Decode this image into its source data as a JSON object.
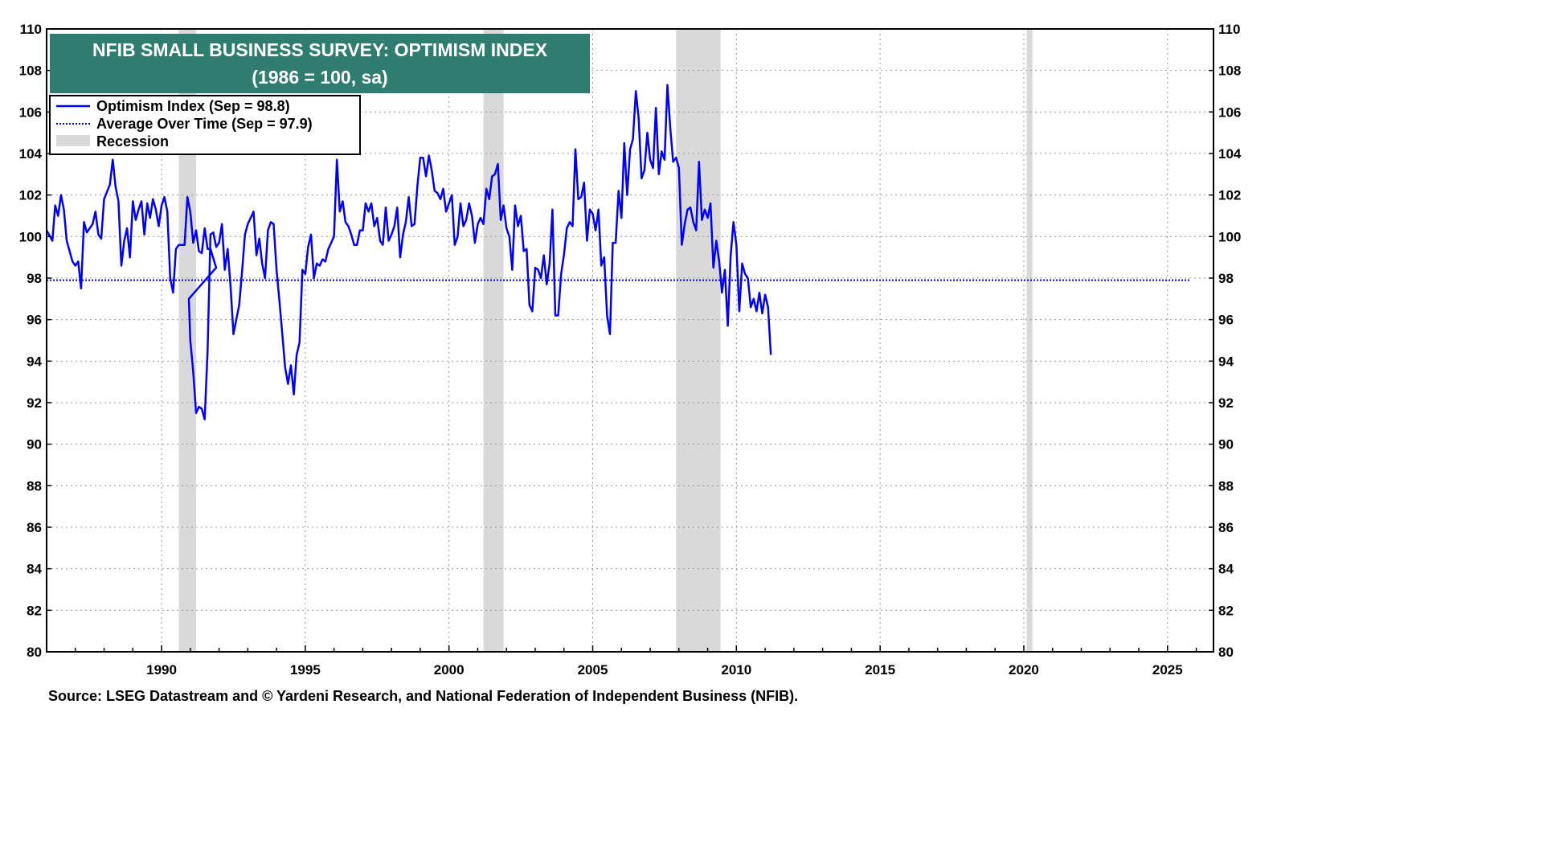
{
  "chart_data": {
    "type": "line",
    "title": "NFIB SMALL BUSINESS SURVEY: OPTIMISM INDEX",
    "subtitle": "(1986 = 100, sa)",
    "source": "Source: LSEG Datastream and © Yardeni Research, and National Federation of Independent Business (NFIB).",
    "xlabel": "",
    "ylabel": "",
    "xlim": [
      1986.0,
      2026.6
    ],
    "ylim": [
      80,
      110
    ],
    "x_ticks": [
      1990,
      1995,
      2000,
      2005,
      2010,
      2015,
      2020,
      2025
    ],
    "y_ticks": [
      80,
      82,
      84,
      86,
      88,
      90,
      92,
      94,
      96,
      98,
      100,
      102,
      104,
      106,
      108,
      110
    ],
    "grid": true,
    "legend_position": "top-left",
    "legend": [
      {
        "label": "Optimism Index (Sep = 98.8)",
        "style": "solid",
        "color": "#0000ff"
      },
      {
        "label": "Average Over Time (Sep = 97.9)",
        "style": "dotted",
        "color": "#0000ff"
      },
      {
        "label": "Recession",
        "style": "box",
        "color": "#d9d9d9"
      }
    ],
    "average": 97.9,
    "recessions": [
      {
        "start": 1990.6,
        "end": 1991.2
      },
      {
        "start": 2001.2,
        "end": 2001.9
      },
      {
        "start": 2007.9,
        "end": 2009.45
      },
      {
        "start": 2020.1,
        "end": 2020.3
      }
    ],
    "series": [
      {
        "name": "Optimism Index",
        "color": "#0000ff",
        "points": [
          [
            1986.0,
            100.3
          ],
          [
            1986.2,
            99.8
          ],
          [
            1986.3,
            101.5
          ],
          [
            1986.4,
            101.0
          ],
          [
            1986.5,
            102.0
          ],
          [
            1986.6,
            101.3
          ],
          [
            1986.7,
            99.8
          ],
          [
            1986.9,
            98.8
          ],
          [
            1987.0,
            98.6
          ],
          [
            1987.1,
            98.8
          ],
          [
            1987.2,
            97.5
          ],
          [
            1987.3,
            100.7
          ],
          [
            1987.4,
            100.2
          ],
          [
            1987.6,
            100.6
          ],
          [
            1987.7,
            101.2
          ],
          [
            1987.8,
            100.1
          ],
          [
            1987.9,
            99.9
          ],
          [
            1988.0,
            101.8
          ],
          [
            1988.2,
            102.5
          ],
          [
            1988.3,
            103.7
          ],
          [
            1988.4,
            102.4
          ],
          [
            1988.5,
            101.7
          ],
          [
            1988.6,
            98.6
          ],
          [
            1988.7,
            99.8
          ],
          [
            1988.8,
            100.4
          ],
          [
            1988.9,
            99.0
          ],
          [
            1989.0,
            101.7
          ],
          [
            1989.1,
            100.8
          ],
          [
            1989.2,
            101.3
          ],
          [
            1989.3,
            101.7
          ],
          [
            1989.4,
            100.1
          ],
          [
            1989.5,
            101.6
          ],
          [
            1989.6,
            100.9
          ],
          [
            1989.7,
            101.8
          ],
          [
            1989.8,
            101.3
          ],
          [
            1989.9,
            100.5
          ],
          [
            1990.0,
            101.5
          ],
          [
            1990.1,
            101.9
          ],
          [
            1990.2,
            101.2
          ],
          [
            1990.3,
            98.0
          ],
          [
            1990.4,
            97.3
          ],
          [
            1990.5,
            99.4
          ],
          [
            1990.6,
            99.6
          ],
          [
            1990.8,
            99.6
          ],
          [
            1990.9,
            101.9
          ],
          [
            1991.0,
            101.2
          ],
          [
            1991.1,
            99.7
          ],
          [
            1991.2,
            100.3
          ],
          [
            1991.3,
            99.3
          ],
          [
            1991.4,
            99.2
          ],
          [
            1991.5,
            100.4
          ],
          [
            1991.6,
            99.4
          ],
          [
            1991.7,
            99.4
          ],
          [
            1991.9,
            98.5
          ],
          [
            1990.95,
            97.0
          ],
          [
            1991.0,
            95.0
          ],
          [
            1991.1,
            93.5
          ],
          [
            1991.2,
            91.5
          ],
          [
            1991.3,
            91.8
          ],
          [
            1991.4,
            91.7
          ],
          [
            1991.5,
            91.2
          ],
          [
            1991.6,
            94.5
          ],
          [
            1991.7,
            100.1
          ],
          [
            1991.8,
            100.2
          ],
          [
            1991.9,
            99.5
          ],
          [
            1992.0,
            99.7
          ],
          [
            1992.1,
            100.6
          ],
          [
            1992.2,
            98.4
          ],
          [
            1992.3,
            99.4
          ],
          [
            1992.4,
            97.6
          ],
          [
            1992.5,
            95.3
          ],
          [
            1992.6,
            96.0
          ],
          [
            1992.7,
            96.7
          ],
          [
            1992.8,
            98.3
          ],
          [
            1992.9,
            100.1
          ],
          [
            1993.0,
            100.6
          ],
          [
            1993.1,
            100.9
          ],
          [
            1993.2,
            101.2
          ],
          [
            1993.3,
            99.1
          ],
          [
            1993.4,
            99.9
          ],
          [
            1993.5,
            98.7
          ],
          [
            1993.6,
            98.0
          ],
          [
            1993.7,
            100.3
          ],
          [
            1993.8,
            100.7
          ],
          [
            1993.9,
            100.6
          ],
          [
            1994.0,
            98.4
          ],
          [
            1994.1,
            96.9
          ],
          [
            1994.2,
            95.3
          ],
          [
            1994.3,
            93.7
          ],
          [
            1994.4,
            92.9
          ],
          [
            1994.5,
            93.8
          ],
          [
            1994.6,
            92.4
          ],
          [
            1994.7,
            94.3
          ],
          [
            1994.8,
            94.9
          ],
          [
            1994.9,
            98.4
          ],
          [
            1995.0,
            98.2
          ],
          [
            1995.1,
            99.5
          ],
          [
            1995.2,
            100.1
          ],
          [
            1995.3,
            98.0
          ],
          [
            1995.4,
            98.7
          ],
          [
            1995.5,
            98.6
          ],
          [
            1995.6,
            98.9
          ],
          [
            1995.7,
            98.8
          ],
          [
            1995.8,
            99.4
          ],
          [
            1995.9,
            99.7
          ],
          [
            1996.0,
            100.0
          ],
          [
            1996.1,
            103.7
          ],
          [
            1996.2,
            101.2
          ],
          [
            1996.3,
            101.7
          ],
          [
            1996.4,
            100.7
          ],
          [
            1996.5,
            100.5
          ],
          [
            1996.6,
            100.1
          ],
          [
            1996.7,
            99.6
          ],
          [
            1996.8,
            99.6
          ],
          [
            1996.9,
            100.3
          ],
          [
            1997.0,
            100.3
          ],
          [
            1997.1,
            101.6
          ],
          [
            1997.2,
            101.2
          ],
          [
            1997.3,
            101.6
          ],
          [
            1997.4,
            100.5
          ],
          [
            1997.5,
            100.9
          ],
          [
            1997.6,
            99.8
          ],
          [
            1997.7,
            99.6
          ],
          [
            1997.8,
            101.4
          ],
          [
            1997.9,
            99.8
          ],
          [
            1998.0,
            100.1
          ],
          [
            1998.1,
            100.5
          ],
          [
            1998.2,
            101.4
          ],
          [
            1998.3,
            99.0
          ],
          [
            1998.4,
            100.1
          ],
          [
            1998.5,
            100.7
          ],
          [
            1998.6,
            101.9
          ],
          [
            1998.7,
            100.5
          ],
          [
            1998.8,
            100.6
          ],
          [
            1998.9,
            102.4
          ],
          [
            1999.0,
            103.8
          ],
          [
            1999.1,
            103.8
          ],
          [
            1999.2,
            102.9
          ],
          [
            1999.3,
            103.9
          ],
          [
            1999.4,
            103.2
          ],
          [
            1999.5,
            102.2
          ],
          [
            1999.6,
            102.1
          ],
          [
            1999.7,
            101.8
          ],
          [
            1999.8,
            102.3
          ],
          [
            1999.9,
            101.2
          ],
          [
            2000.0,
            101.6
          ],
          [
            2000.1,
            102.0
          ],
          [
            2000.2,
            99.6
          ],
          [
            2000.3,
            100.0
          ],
          [
            2000.4,
            101.6
          ],
          [
            2000.5,
            100.5
          ],
          [
            2000.6,
            100.8
          ],
          [
            2000.7,
            101.6
          ],
          [
            2000.8,
            101.0
          ],
          [
            2000.9,
            99.7
          ],
          [
            2001.0,
            100.6
          ],
          [
            2001.1,
            100.9
          ],
          [
            2001.2,
            100.6
          ],
          [
            2001.3,
            102.3
          ],
          [
            2001.4,
            101.8
          ],
          [
            2001.5,
            102.9
          ],
          [
            2001.6,
            103.0
          ],
          [
            2001.7,
            103.5
          ],
          [
            2001.8,
            100.8
          ],
          [
            2001.9,
            101.5
          ],
          [
            2002.0,
            100.4
          ],
          [
            2002.1,
            100.0
          ],
          [
            2002.2,
            98.4
          ],
          [
            2002.3,
            101.5
          ],
          [
            2002.4,
            100.5
          ],
          [
            2002.5,
            101.0
          ],
          [
            2002.6,
            99.3
          ],
          [
            2002.7,
            99.4
          ],
          [
            2002.8,
            96.7
          ],
          [
            2002.9,
            96.4
          ],
          [
            2003.0,
            98.5
          ],
          [
            2003.1,
            98.4
          ],
          [
            2003.2,
            98.0
          ],
          [
            2003.3,
            99.1
          ],
          [
            2003.4,
            97.7
          ],
          [
            2003.5,
            98.7
          ],
          [
            2003.6,
            101.3
          ],
          [
            2003.7,
            96.2
          ],
          [
            2003.8,
            96.2
          ],
          [
            2003.9,
            98.2
          ],
          [
            2004.0,
            99.1
          ],
          [
            2004.1,
            100.4
          ],
          [
            2004.2,
            100.7
          ],
          [
            2004.3,
            100.5
          ],
          [
            2004.4,
            104.2
          ],
          [
            2004.5,
            101.8
          ],
          [
            2004.6,
            101.9
          ],
          [
            2004.7,
            102.6
          ],
          [
            2004.8,
            99.8
          ],
          [
            2004.9,
            101.3
          ],
          [
            2005.0,
            101.1
          ],
          [
            2005.1,
            100.3
          ],
          [
            2005.2,
            101.3
          ],
          [
            2005.3,
            98.6
          ],
          [
            2005.4,
            99.0
          ],
          [
            2005.5,
            96.2
          ],
          [
            2005.6,
            95.3
          ],
          [
            2005.7,
            99.7
          ],
          [
            2005.8,
            99.7
          ],
          [
            2005.9,
            102.2
          ],
          [
            2006.0,
            100.9
          ],
          [
            2006.1,
            104.5
          ],
          [
            2006.2,
            102.0
          ],
          [
            2006.3,
            104.2
          ],
          [
            2006.4,
            104.7
          ],
          [
            2006.5,
            107.0
          ],
          [
            2006.6,
            105.7
          ],
          [
            2006.7,
            102.8
          ],
          [
            2006.8,
            103.2
          ],
          [
            2006.9,
            105.0
          ],
          [
            2007.0,
            103.7
          ],
          [
            2007.1,
            103.3
          ],
          [
            2007.2,
            106.2
          ],
          [
            2007.3,
            103.0
          ],
          [
            2007.4,
            104.1
          ],
          [
            2007.5,
            103.7
          ],
          [
            2007.6,
            107.3
          ],
          [
            2007.7,
            105.2
          ],
          [
            2007.8,
            103.6
          ],
          [
            2007.9,
            103.8
          ],
          [
            2008.0,
            103.3
          ],
          [
            2008.1,
            99.6
          ],
          [
            2008.2,
            100.6
          ],
          [
            2008.3,
            101.3
          ],
          [
            2008.4,
            101.4
          ],
          [
            2008.5,
            100.7
          ],
          [
            2008.6,
            100.3
          ],
          [
            2008.7,
            103.6
          ],
          [
            2008.8,
            100.8
          ],
          [
            2008.9,
            101.3
          ],
          [
            2009.0,
            100.9
          ],
          [
            2009.1,
            101.6
          ],
          [
            2009.2,
            98.5
          ],
          [
            2009.3,
            99.8
          ],
          [
            2009.4,
            98.8
          ],
          [
            2009.5,
            97.3
          ],
          [
            2009.6,
            98.4
          ],
          [
            2009.7,
            95.7
          ],
          [
            2009.8,
            99.1
          ],
          [
            2009.9,
            100.7
          ],
          [
            2010.0,
            99.6
          ],
          [
            2010.1,
            96.4
          ],
          [
            2010.2,
            98.7
          ],
          [
            2010.3,
            98.2
          ],
          [
            2010.4,
            98.0
          ],
          [
            2010.5,
            96.6
          ],
          [
            2010.6,
            97.0
          ],
          [
            2010.7,
            96.4
          ],
          [
            2010.8,
            97.3
          ],
          [
            2010.9,
            96.3
          ],
          [
            2011.0,
            97.2
          ],
          [
            2011.1,
            96.6
          ],
          [
            2011.2,
            94.3
          ]
        ]
      }
    ]
  }
}
